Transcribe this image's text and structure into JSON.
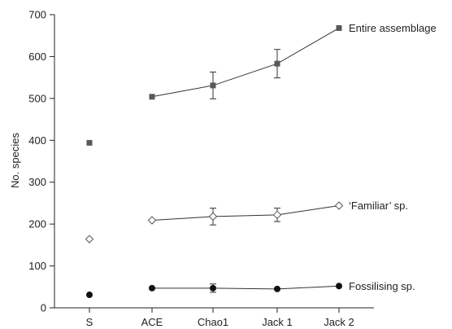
{
  "chart_data": {
    "type": "scatter",
    "title": "",
    "xlabel": "",
    "ylabel": "No. species",
    "ylim": [
      0,
      700
    ],
    "yticks": [
      0,
      100,
      200,
      300,
      400,
      500,
      600,
      700
    ],
    "categories": [
      "S",
      "ACE",
      "Chao1",
      "Jack 1",
      "Jack 2"
    ],
    "grid": false,
    "legend": "inline-right",
    "series": [
      {
        "name": "Entire assemblage",
        "marker": "square-filled",
        "color": "#595959",
        "points": [
          {
            "category": "S",
            "y": 394,
            "err": null,
            "connect": false
          },
          {
            "category": "ACE",
            "y": 504,
            "err": null,
            "connect": true
          },
          {
            "category": "Chao1",
            "y": 531,
            "err": 32,
            "connect": true
          },
          {
            "category": "Jack 1",
            "y": 583,
            "err": 34,
            "connect": true
          },
          {
            "category": "Jack 2",
            "y": 668,
            "err": null,
            "connect": true
          }
        ]
      },
      {
        "name": "‘Familiar’ sp.",
        "marker": "diamond-open",
        "color": "#555555",
        "points": [
          {
            "category": "S",
            "y": 164,
            "err": null,
            "connect": false
          },
          {
            "category": "ACE",
            "y": 209,
            "err": null,
            "connect": true
          },
          {
            "category": "Chao1",
            "y": 218,
            "err": 20,
            "connect": true
          },
          {
            "category": "Jack 1",
            "y": 222,
            "err": 16,
            "connect": true
          },
          {
            "category": "Jack 2",
            "y": 244,
            "err": null,
            "connect": true
          }
        ]
      },
      {
        "name": "Fossilising sp.",
        "marker": "circle-filled",
        "color": "#111111",
        "points": [
          {
            "category": "S",
            "y": 31,
            "err": null,
            "connect": false
          },
          {
            "category": "ACE",
            "y": 47,
            "err": null,
            "connect": true
          },
          {
            "category": "Chao1",
            "y": 47,
            "err": 10,
            "connect": true
          },
          {
            "category": "Jack 1",
            "y": 45,
            "err": null,
            "connect": true
          },
          {
            "category": "Jack 2",
            "y": 52,
            "err": null,
            "connect": true
          }
        ]
      }
    ]
  }
}
